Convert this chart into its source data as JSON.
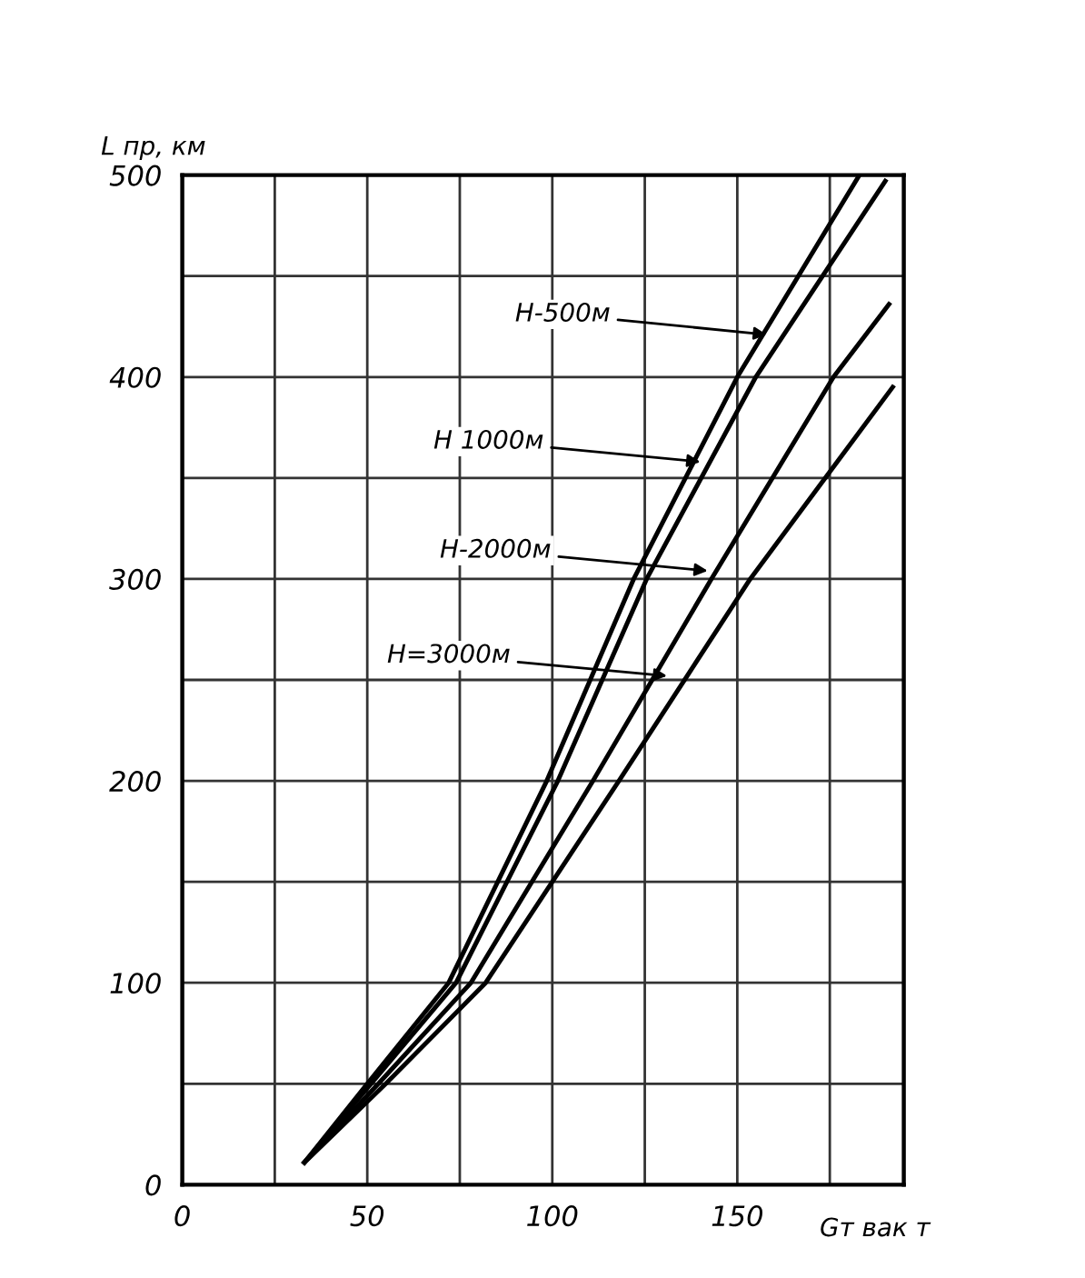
{
  "chart_data": {
    "type": "line",
    "xlabel": "Gт вак т",
    "ylabel": "L пр, км",
    "xlim": [
      0,
      195
    ],
    "ylim": [
      0,
      500
    ],
    "xticks": [
      0,
      {
        "value": 25,
        "label": null
      },
      50,
      {
        "value": 75,
        "label": null
      },
      100,
      {
        "value": 125,
        "label": null
      },
      150,
      {
        "value": 175,
        "label": null
      }
    ],
    "yticks": [
      0,
      {
        "value": 50,
        "label": null
      },
      100,
      {
        "value": 150,
        "label": null
      },
      200,
      {
        "value": 250,
        "label": null
      },
      300,
      {
        "value": 350,
        "label": null
      },
      400,
      {
        "value": 450,
        "label": null
      },
      500
    ],
    "grid": true,
    "marker": "none",
    "line_style": "solid",
    "series": [
      {
        "color": "#000000",
        "x": [
          33,
          50,
          72,
          98.5,
          122,
          150,
          183
        ],
        "values": [
          11,
          50,
          100,
          200,
          300,
          400,
          500
        ]
      },
      {
        "color": "#000000",
        "x": [
          33,
          51,
          74,
          101.5,
          125.5,
          155,
          190
        ],
        "values": [
          11,
          50,
          100,
          200,
          300,
          400,
          497
        ]
      },
      {
        "color": "#000000",
        "x": [
          33,
          53,
          78,
          111,
          143,
          176,
          191
        ],
        "values": [
          11,
          50,
          100,
          200,
          300,
          400,
          436
        ]
      },
      {
        "color": "#000000",
        "x": [
          33,
          55,
          82,
          118,
          153.5,
          192
        ],
        "values": [
          11,
          50,
          100,
          200,
          300,
          395
        ]
      }
    ],
    "annotations": [
      {
        "text": "H-500м",
        "x": 158,
        "y": 421
      },
      {
        "text": "H 1000м",
        "x": 140,
        "y": 358
      },
      {
        "text": "H-2000м",
        "x": 142,
        "y": 304
      },
      {
        "text": "H=3000м",
        "x": 131,
        "y": 252
      }
    ]
  }
}
